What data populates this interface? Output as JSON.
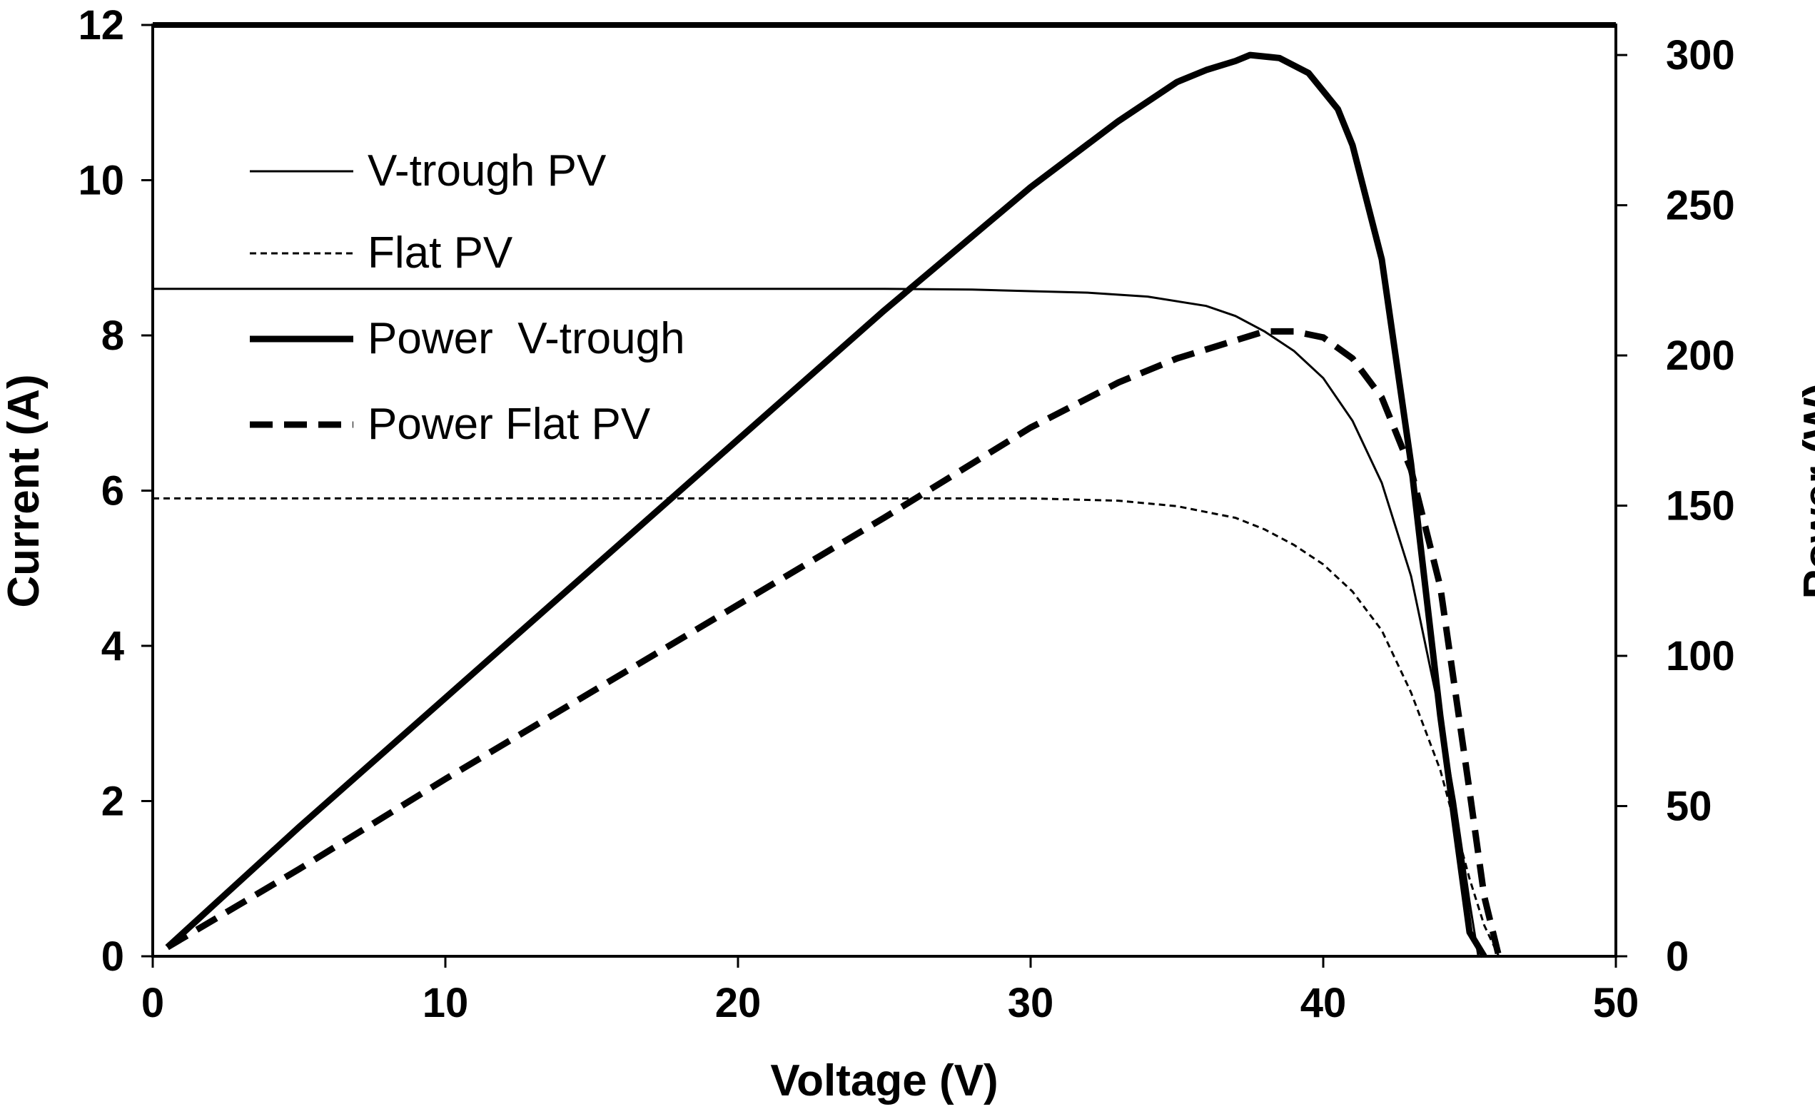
{
  "chart_data": {
    "type": "line",
    "x_axis": {
      "label": "Voltage (V)",
      "range": [
        0,
        50
      ],
      "ticks": [
        "0",
        "10",
        "20",
        "30",
        "40",
        "50"
      ]
    },
    "y_axis_left": {
      "label": "Current (A)",
      "range": [
        0,
        12
      ],
      "ticks": [
        "0",
        "2",
        "4",
        "6",
        "8",
        "10",
        "12"
      ]
    },
    "y_axis_right": {
      "label": "Power (W)",
      "range": [
        0,
        310
      ],
      "ticks": [
        "0",
        "50",
        "100",
        "150",
        "200",
        "250",
        "300"
      ]
    },
    "grid": false,
    "legend_position": "top-left",
    "series": [
      {
        "name": "V-trough PV",
        "axis": "left",
        "style": "thin-solid",
        "x": [
          0,
          5,
          10,
          15,
          20,
          25,
          28,
          30,
          32,
          34,
          36,
          37,
          38,
          39,
          40,
          41,
          42,
          43,
          44,
          44.5,
          45,
          45.3
        ],
        "y": [
          8.6,
          8.6,
          8.6,
          8.6,
          8.6,
          8.6,
          8.59,
          8.57,
          8.55,
          8.5,
          8.38,
          8.25,
          8.05,
          7.8,
          7.45,
          6.9,
          6.1,
          4.9,
          3.1,
          2.0,
          0.7,
          0.0
        ]
      },
      {
        "name": "Flat PV",
        "axis": "left",
        "style": "thin-dashed",
        "x": [
          0,
          5,
          10,
          15,
          20,
          25,
          30,
          33,
          35,
          37,
          38,
          39,
          40,
          41,
          42,
          43,
          44,
          45,
          45.5,
          46
        ],
        "y": [
          5.9,
          5.9,
          5.9,
          5.9,
          5.9,
          5.9,
          5.9,
          5.87,
          5.8,
          5.65,
          5.5,
          5.3,
          5.05,
          4.7,
          4.2,
          3.4,
          2.4,
          1.0,
          0.4,
          0.0
        ]
      },
      {
        "name": "Power  V-trough",
        "axis": "right",
        "style": "thick-solid",
        "x": [
          0.5,
          5,
          10,
          15,
          20,
          25,
          30,
          33,
          35,
          36,
          37,
          37.5,
          38.5,
          39.5,
          40.5,
          41,
          42,
          43,
          44,
          45,
          45.5
        ],
        "y": [
          3,
          43,
          86,
          129,
          172,
          215,
          256,
          278,
          291,
          295,
          298,
          300,
          299,
          294,
          282,
          270,
          232,
          164,
          80,
          8,
          0
        ]
      },
      {
        "name": "Power Flat PV",
        "axis": "right",
        "style": "thick-dashed",
        "x": [
          0.5,
          5,
          10,
          15,
          20,
          25,
          30,
          33,
          35,
          37,
          38,
          39,
          40,
          41,
          42,
          43,
          44,
          45,
          45.5,
          46
        ],
        "y": [
          3,
          29,
          59,
          88,
          117,
          146,
          176,
          191,
          199,
          205,
          208,
          208,
          206,
          199,
          186,
          162,
          123,
          55,
          20,
          0
        ]
      }
    ]
  }
}
